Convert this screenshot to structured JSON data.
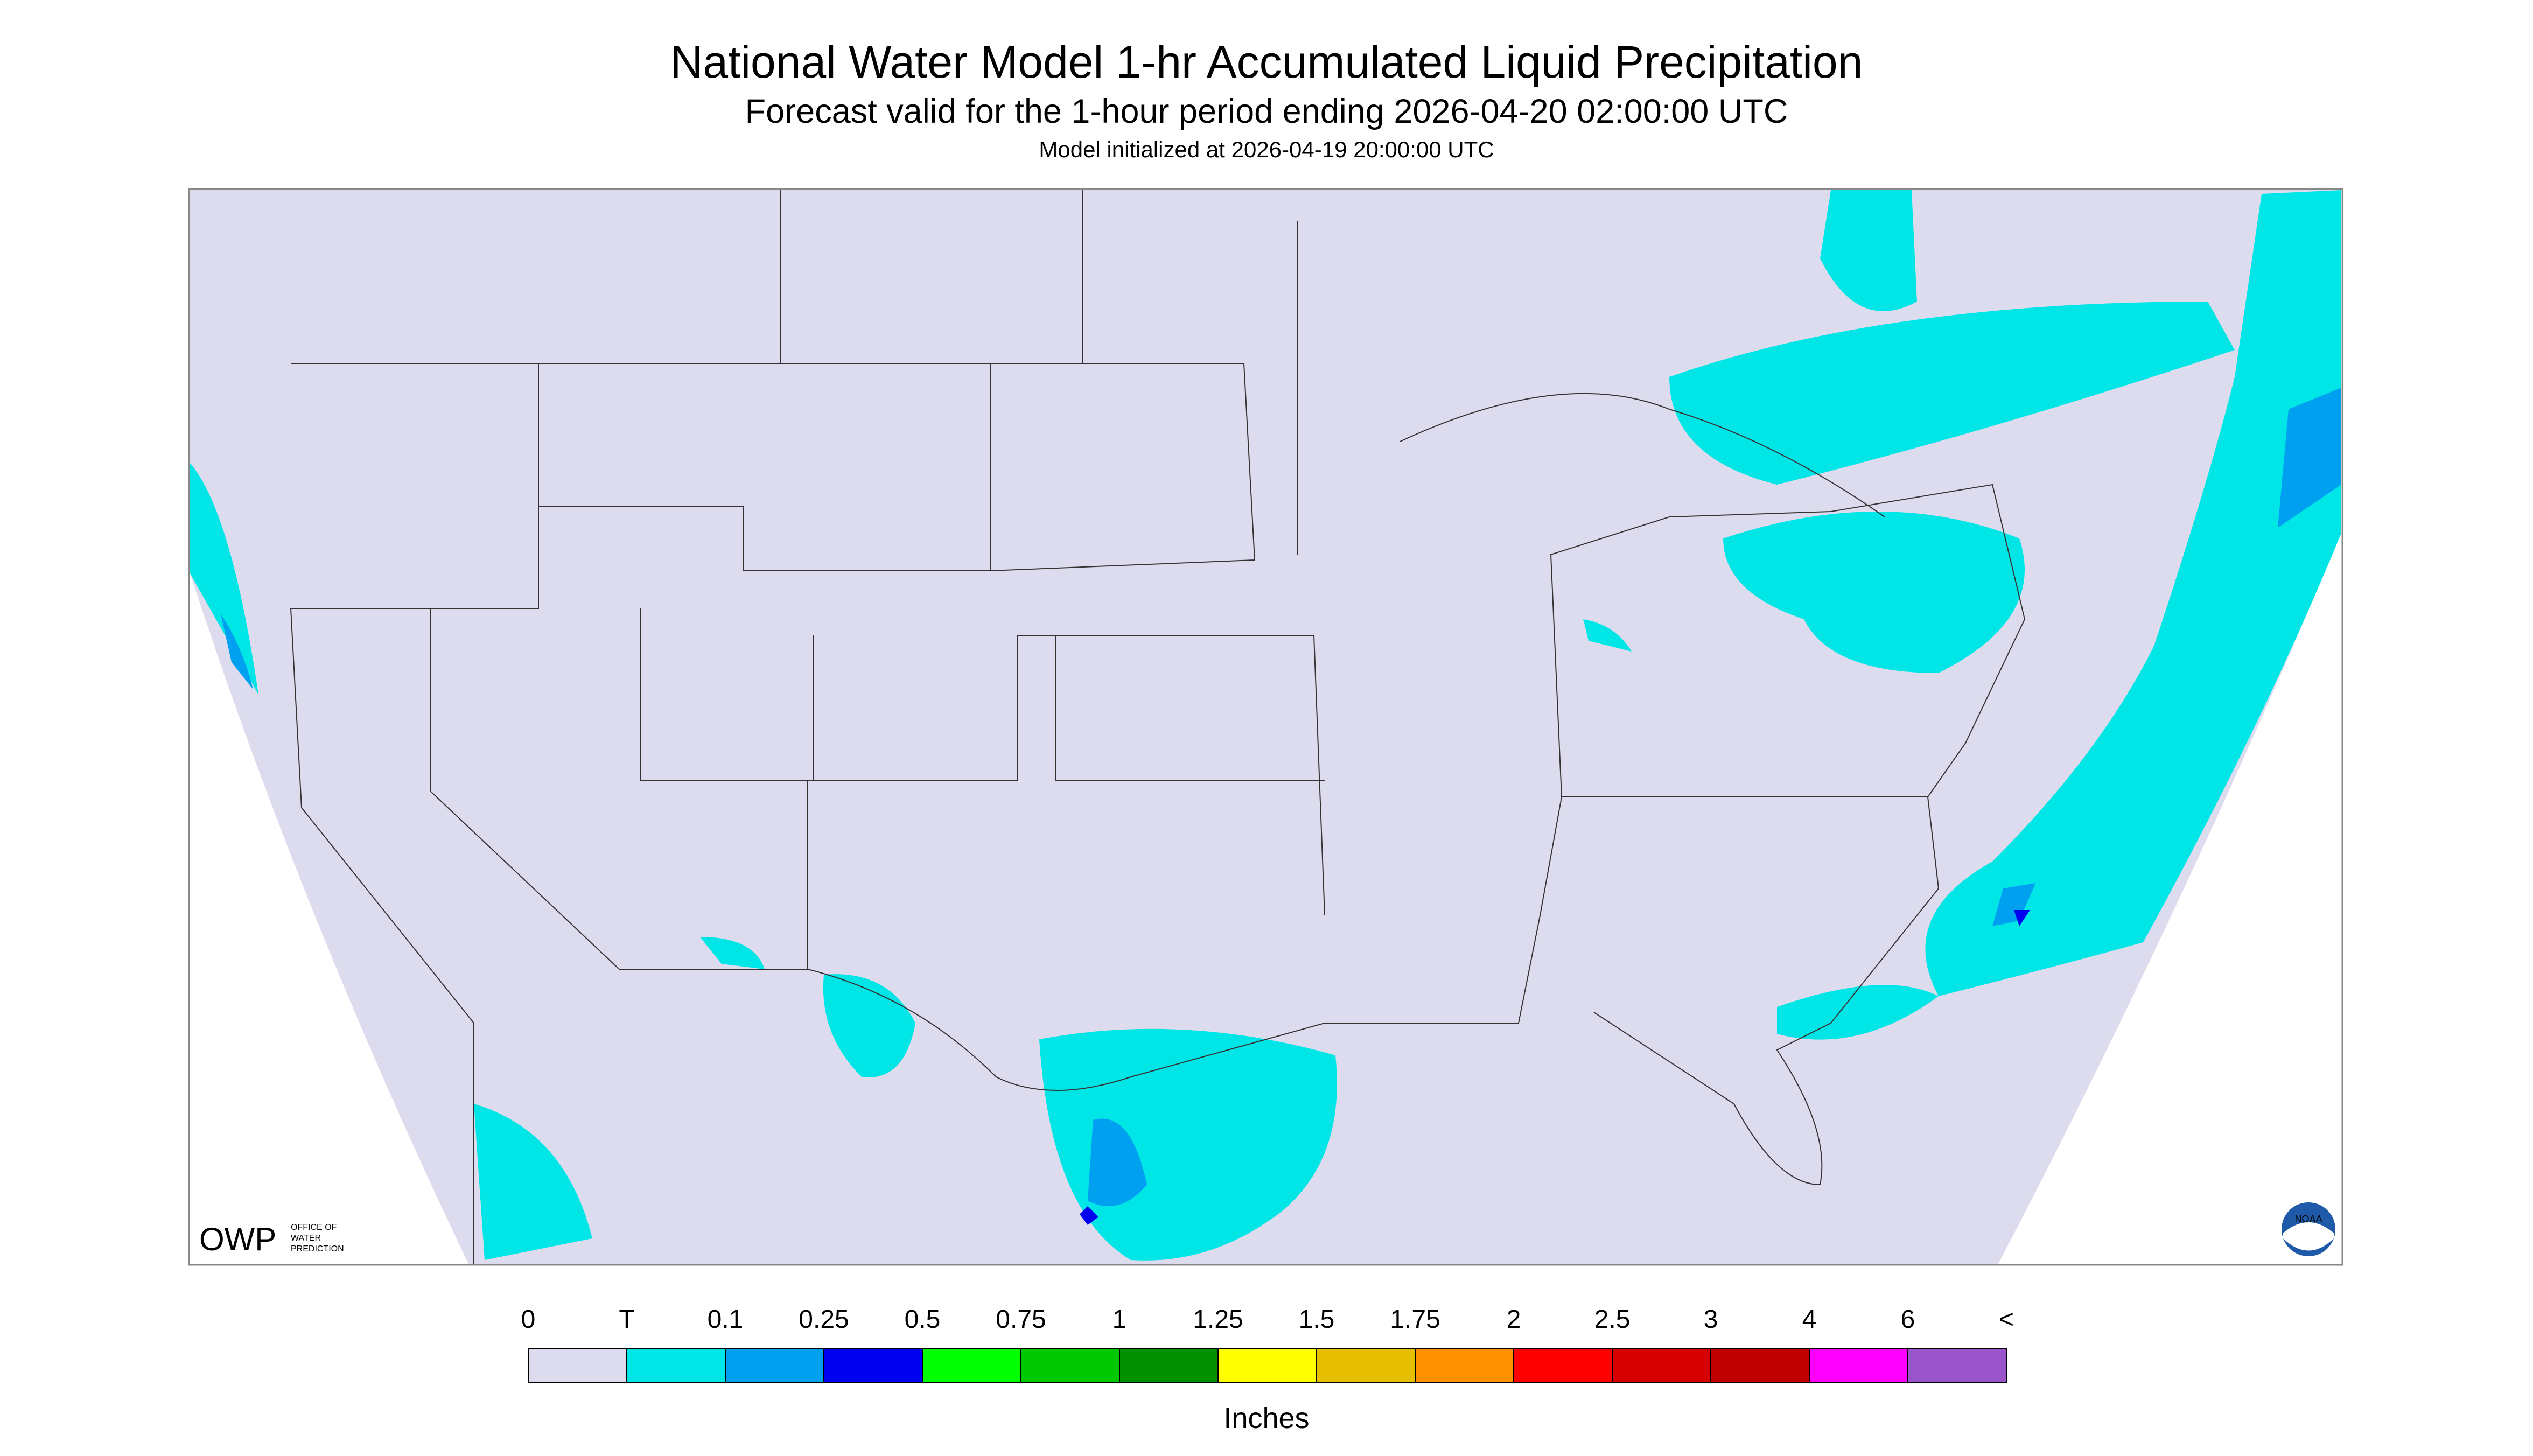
{
  "header": {
    "title": "National Water Model 1-hr Accumulated Liquid Precipitation",
    "subtitle": "Forecast valid for the 1-hour period ending 2026-04-20 02:00:00 UTC",
    "note": "Model initialized at 2026-04-19 20:00:00 UTC"
  },
  "legend": {
    "labels": [
      "0",
      "T",
      "0.1",
      "0.25",
      "0.5",
      "0.75",
      "1",
      "1.25",
      "1.5",
      "1.75",
      "2",
      "2.5",
      "3",
      "4",
      "6",
      "<"
    ],
    "colors": [
      "#dcdcee",
      "#00e6e6",
      "#00a0f0",
      "#0000f0",
      "#00ff00",
      "#00c800",
      "#009000",
      "#ffff00",
      "#e6be00",
      "#ff9000",
      "#ff0000",
      "#d60000",
      "#c00000",
      "#ff00ff",
      "#9955c9"
    ],
    "unit": "Inches"
  },
  "logos": {
    "owp": "OWP",
    "owp_full": [
      "OFFICE OF",
      "WATER",
      "PREDICTION"
    ],
    "noaa": "NOAA"
  }
}
